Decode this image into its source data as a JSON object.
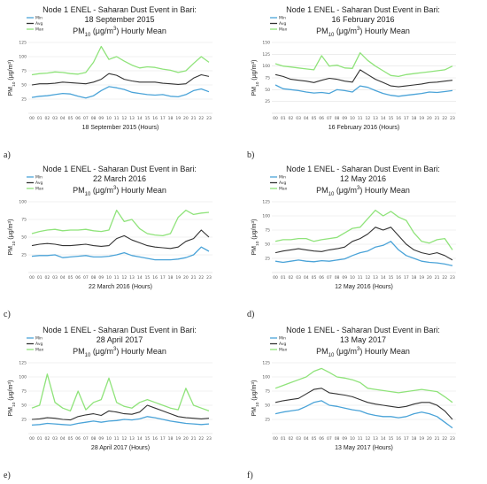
{
  "colors": {
    "min": "#4aa3d8",
    "avg": "#333333",
    "max": "#8fe37a",
    "grid": "#e2e2e2"
  },
  "chart_data": [
    {
      "type": "line",
      "panel_label": "a)",
      "title_lines": [
        "Node 1 ENEL - Saharan Dust Event in Bari:",
        "18 September 2015"
      ],
      "subtitle_parts": [
        "PM",
        "10",
        " (μg/m",
        "3",
        ") Hourly Mean"
      ],
      "xlabel": "18 September 2015 (Hours)",
      "ylabel_parts": [
        "PM",
        "10",
        " (μg/m",
        "3",
        ")"
      ],
      "ylim": [
        0,
        125
      ],
      "yticks": [
        25,
        50,
        75,
        100,
        125
      ],
      "categories": [
        "00",
        "01",
        "02",
        "03",
        "04",
        "05",
        "06",
        "07",
        "08",
        "09",
        "10",
        "11",
        "12",
        "13",
        "14",
        "15",
        "16",
        "17",
        "18",
        "19",
        "20",
        "21",
        "22",
        "23"
      ],
      "series": [
        {
          "name": "Min",
          "values": [
            28,
            30,
            31,
            33,
            35,
            34,
            30,
            27,
            31,
            40,
            47,
            45,
            42,
            37,
            35,
            33,
            32,
            33,
            30,
            29,
            33,
            40,
            43,
            38
          ]
        },
        {
          "name": "Avg",
          "values": [
            50,
            52,
            52,
            53,
            55,
            54,
            53,
            52,
            55,
            60,
            70,
            67,
            60,
            57,
            55,
            55,
            55,
            53,
            52,
            51,
            52,
            62,
            68,
            65
          ]
        },
        {
          "name": "Max",
          "values": [
            68,
            70,
            71,
            73,
            72,
            70,
            69,
            72,
            90,
            118,
            95,
            100,
            92,
            85,
            80,
            82,
            81,
            78,
            76,
            72,
            75,
            88,
            100,
            90
          ]
        }
      ]
    },
    {
      "type": "line",
      "panel_label": "b)",
      "title_lines": [
        "Node 1 ENEL - Saharan Dust Event in Bari:",
        "16 February 2016"
      ],
      "subtitle_parts": [
        "PM",
        "10",
        " (μg/m",
        "3",
        ") Hourly Mean"
      ],
      "xlabel": "16 February 2016 (Hours)",
      "ylabel_parts": [
        "PM",
        "10",
        " (μg/m",
        "3",
        ")"
      ],
      "ylim": [
        0,
        150
      ],
      "yticks": [
        25,
        50,
        75,
        100,
        125,
        150
      ],
      "categories": [
        "00",
        "01",
        "02",
        "03",
        "04",
        "05",
        "06",
        "07",
        "08",
        "09",
        "10",
        "11",
        "12",
        "13",
        "14",
        "15",
        "16",
        "17",
        "18",
        "19",
        "20",
        "21",
        "22",
        "23"
      ],
      "series": [
        {
          "name": "Min",
          "values": [
            60,
            52,
            50,
            48,
            45,
            43,
            44,
            42,
            50,
            48,
            45,
            58,
            55,
            48,
            42,
            38,
            36,
            38,
            40,
            42,
            45,
            44,
            46,
            48
          ]
        },
        {
          "name": "Avg",
          "values": [
            82,
            78,
            72,
            70,
            68,
            65,
            70,
            74,
            72,
            68,
            66,
            92,
            82,
            72,
            65,
            58,
            56,
            58,
            60,
            62,
            65,
            66,
            68,
            70
          ]
        },
        {
          "name": "Max",
          "values": [
            105,
            100,
            98,
            96,
            94,
            92,
            122,
            100,
            102,
            96,
            95,
            128,
            112,
            100,
            90,
            80,
            78,
            82,
            84,
            86,
            88,
            90,
            92,
            100
          ]
        }
      ]
    },
    {
      "type": "line",
      "panel_label": "c)",
      "title_lines": [
        "Node 1 ENEL - Saharan Dust Event in Bari:",
        "22 March 2016"
      ],
      "subtitle_parts": [
        "PM",
        "10",
        " (μg/m",
        "3",
        ") Hourly Mean"
      ],
      "xlabel": "22 March 2016 (Hours)",
      "ylabel_parts": [
        "PM",
        "10",
        " (μg/m",
        "3",
        ")"
      ],
      "ylim": [
        0,
        100
      ],
      "yticks": [
        25,
        50,
        75,
        100
      ],
      "categories": [
        "00",
        "01",
        "02",
        "03",
        "04",
        "05",
        "06",
        "07",
        "08",
        "09",
        "10",
        "11",
        "12",
        "13",
        "14",
        "15",
        "16",
        "17",
        "18",
        "19",
        "20",
        "21",
        "22",
        "23"
      ],
      "series": [
        {
          "name": "Min",
          "values": [
            23,
            24,
            24,
            25,
            21,
            22,
            23,
            24,
            22,
            22,
            23,
            25,
            28,
            24,
            22,
            20,
            18,
            18,
            18,
            19,
            21,
            25,
            36,
            30
          ]
        },
        {
          "name": "Avg",
          "values": [
            38,
            40,
            41,
            40,
            38,
            38,
            39,
            40,
            38,
            37,
            38,
            48,
            52,
            46,
            42,
            38,
            36,
            35,
            34,
            36,
            44,
            48,
            60,
            50
          ]
        },
        {
          "name": "Max",
          "values": [
            55,
            58,
            60,
            61,
            59,
            60,
            60,
            61,
            59,
            58,
            60,
            88,
            72,
            75,
            62,
            55,
            53,
            52,
            55,
            78,
            88,
            82,
            84,
            85
          ]
        }
      ]
    },
    {
      "type": "line",
      "panel_label": "d)",
      "title_lines": [
        "Node 1 ENEL - Saharan Dust Event in Bari:",
        "12 May 2016"
      ],
      "subtitle_parts": [
        "PM",
        "10",
        " (μg/m",
        "3",
        ") Hourly Mean"
      ],
      "xlabel": "12 May 2016 (Hours)",
      "ylabel_parts": [
        "PM",
        "10",
        " (μg/m",
        "3",
        ")"
      ],
      "ylim": [
        0,
        125
      ],
      "yticks": [
        25,
        50,
        75,
        100,
        125
      ],
      "categories": [
        "00",
        "01",
        "02",
        "03",
        "04",
        "05",
        "06",
        "07",
        "08",
        "09",
        "10",
        "11",
        "12",
        "13",
        "14",
        "15",
        "16",
        "17",
        "18",
        "19",
        "20",
        "21",
        "22",
        "23"
      ],
      "series": [
        {
          "name": "Min",
          "values": [
            20,
            18,
            20,
            22,
            20,
            19,
            21,
            20,
            22,
            24,
            30,
            35,
            38,
            45,
            48,
            55,
            40,
            30,
            25,
            20,
            18,
            17,
            15,
            12
          ]
        },
        {
          "name": "Avg",
          "values": [
            35,
            38,
            40,
            42,
            40,
            38,
            37,
            40,
            42,
            45,
            55,
            60,
            68,
            80,
            75,
            80,
            65,
            50,
            40,
            35,
            32,
            35,
            30,
            22
          ]
        },
        {
          "name": "Max",
          "values": [
            55,
            58,
            58,
            60,
            60,
            55,
            58,
            60,
            62,
            70,
            78,
            80,
            95,
            110,
            100,
            108,
            98,
            92,
            70,
            55,
            52,
            58,
            60,
            40
          ]
        }
      ]
    },
    {
      "type": "line",
      "panel_label": "e)",
      "title_lines": [
        "Node 1 ENEL - Saharan Dust Event in Bari:",
        "28 April 2017"
      ],
      "subtitle_parts": [
        "PM",
        "10",
        " (μg/m",
        "3",
        ") Hourly Mean"
      ],
      "xlabel": "28 April 2017 (Hours)",
      "ylabel_parts": [
        "PM",
        "10",
        " (μg/m",
        "3",
        ")"
      ],
      "ylim": [
        0,
        125
      ],
      "yticks": [
        25,
        50,
        75,
        100,
        125
      ],
      "categories": [
        "00",
        "01",
        "02",
        "03",
        "04",
        "05",
        "06",
        "07",
        "08",
        "09",
        "10",
        "11",
        "12",
        "13",
        "14",
        "15",
        "16",
        "17",
        "18",
        "19",
        "20",
        "21",
        "22",
        "23"
      ],
      "series": [
        {
          "name": "Min",
          "values": [
            15,
            16,
            18,
            17,
            16,
            15,
            18,
            20,
            22,
            20,
            22,
            23,
            25,
            24,
            26,
            30,
            28,
            25,
            22,
            20,
            18,
            17,
            16,
            17
          ]
        },
        {
          "name": "Avg",
          "values": [
            25,
            26,
            28,
            27,
            25,
            24,
            30,
            33,
            35,
            32,
            40,
            38,
            35,
            34,
            38,
            50,
            45,
            40,
            35,
            30,
            28,
            27,
            26,
            27
          ]
        },
        {
          "name": "Max",
          "values": [
            45,
            50,
            105,
            55,
            45,
            40,
            75,
            42,
            55,
            60,
            98,
            55,
            48,
            45,
            55,
            60,
            55,
            50,
            45,
            42,
            80,
            50,
            45,
            40
          ]
        }
      ]
    },
    {
      "type": "line",
      "panel_label": "f)",
      "title_lines": [
        "Node 1 ENEL - Saharan Dust Event in Bari:",
        "13 May 2017"
      ],
      "subtitle_parts": [
        "PM",
        "10",
        " (μg/m",
        "3",
        ") Hourly Mean"
      ],
      "xlabel": "13 May 2017 (Hours)",
      "ylabel_parts": [
        "PM",
        "10",
        " (μg/m",
        "3",
        ")"
      ],
      "ylim": [
        0,
        125
      ],
      "yticks": [
        25,
        50,
        75,
        100,
        125
      ],
      "categories": [
        "00",
        "01",
        "02",
        "03",
        "04",
        "05",
        "06",
        "07",
        "08",
        "09",
        "10",
        "11",
        "12",
        "13",
        "14",
        "15",
        "16",
        "17",
        "18",
        "19",
        "20",
        "21",
        "22",
        "23"
      ],
      "series": [
        {
          "name": "Min",
          "values": [
            35,
            38,
            40,
            42,
            48,
            55,
            58,
            50,
            48,
            45,
            42,
            40,
            35,
            32,
            30,
            30,
            28,
            30,
            35,
            38,
            35,
            30,
            20,
            10
          ]
        },
        {
          "name": "Avg",
          "values": [
            55,
            58,
            60,
            62,
            70,
            78,
            80,
            72,
            70,
            68,
            65,
            60,
            55,
            52,
            50,
            48,
            46,
            48,
            52,
            55,
            55,
            50,
            40,
            25
          ]
        },
        {
          "name": "Max",
          "values": [
            80,
            85,
            90,
            95,
            100,
            110,
            115,
            108,
            100,
            98,
            95,
            90,
            80,
            78,
            76,
            74,
            72,
            74,
            76,
            78,
            76,
            74,
            65,
            55
          ]
        }
      ]
    }
  ]
}
